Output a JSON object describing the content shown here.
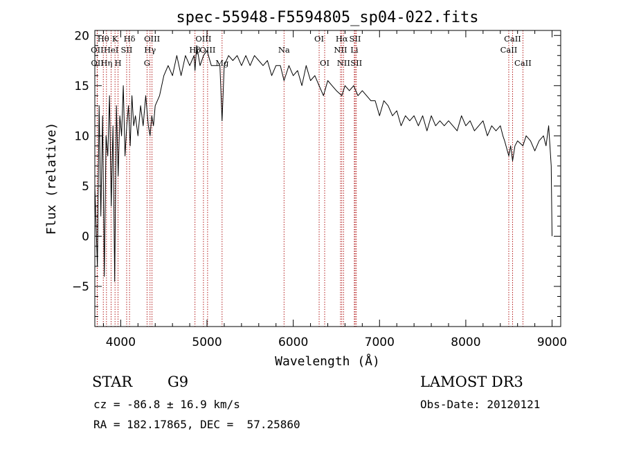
{
  "chart_data": {
    "type": "line",
    "title": "spec-55948-F5594805_sp04-022.fits",
    "xlabel": "Wavelength (Å)",
    "ylabel": "Flux (relative)",
    "xlim": [
      3700,
      9100
    ],
    "ylim": [
      -9,
      20.5
    ],
    "xticks": [
      4000,
      5000,
      6000,
      7000,
      8000,
      9000
    ],
    "yticks": [
      -5,
      0,
      5,
      10,
      15,
      20
    ],
    "x_tick_labels": [
      "4000",
      "5000",
      "6000",
      "7000",
      "8000",
      "9000"
    ],
    "y_tick_labels": [
      "−5",
      "0",
      "5",
      "10",
      "15",
      "20"
    ],
    "series": [
      {
        "name": "flux",
        "x": [
          3700,
          3730,
          3750,
          3770,
          3790,
          3810,
          3830,
          3850,
          3870,
          3890,
          3910,
          3930,
          3950,
          3970,
          3990,
          4010,
          4030,
          4050,
          4070,
          4090,
          4110,
          4130,
          4150,
          4170,
          4200,
          4230,
          4260,
          4290,
          4320,
          4340,
          4360,
          4380,
          4400,
          4450,
          4500,
          4550,
          4600,
          4650,
          4700,
          4750,
          4800,
          4850,
          4861,
          4880,
          4920,
          4960,
          5000,
          5050,
          5100,
          5150,
          5175,
          5200,
          5250,
          5300,
          5350,
          5400,
          5450,
          5500,
          5550,
          5600,
          5650,
          5700,
          5750,
          5800,
          5850,
          5893,
          5950,
          6000,
          6050,
          6100,
          6150,
          6200,
          6250,
          6300,
          6350,
          6400,
          6450,
          6500,
          6563,
          6600,
          6650,
          6700,
          6750,
          6800,
          6850,
          6900,
          6950,
          7000,
          7050,
          7100,
          7150,
          7200,
          7250,
          7300,
          7350,
          7400,
          7450,
          7500,
          7550,
          7600,
          7650,
          7700,
          7750,
          7800,
          7850,
          7900,
          7950,
          8000,
          8050,
          8100,
          8150,
          8200,
          8250,
          8300,
          8350,
          8400,
          8430,
          8450,
          8498,
          8520,
          8542,
          8570,
          8600,
          8662,
          8700,
          8750,
          8800,
          8850,
          8900,
          8930,
          8960,
          8990,
          9000
        ],
        "values": [
          5,
          -3,
          13,
          2,
          12,
          -4,
          10,
          8,
          14,
          3,
          11,
          -4.5,
          13,
          6,
          12,
          10,
          15,
          8,
          11,
          13,
          9,
          14,
          11,
          12,
          10,
          13,
          11,
          14,
          11,
          10,
          12,
          11,
          13,
          14,
          16,
          17,
          16,
          18,
          16,
          18,
          17,
          18,
          16.5,
          19,
          17,
          18,
          18.5,
          17,
          17,
          17,
          11.5,
          17,
          18,
          17.5,
          18,
          17,
          18,
          17,
          18,
          17.5,
          17,
          17.5,
          16,
          17,
          17,
          15.5,
          17,
          16,
          16.5,
          15,
          17,
          15.5,
          16,
          15,
          14,
          15.5,
          15,
          14.5,
          14,
          15,
          14.5,
          15,
          14,
          14.5,
          14,
          13.5,
          13.5,
          12,
          13.5,
          13,
          12,
          12.5,
          11,
          12,
          11.5,
          12,
          11,
          12,
          10.5,
          12,
          11,
          11.5,
          11,
          11.5,
          11,
          10.5,
          12,
          11,
          11.5,
          10.5,
          11,
          11.5,
          10,
          11,
          10.5,
          11,
          10,
          9.5,
          8,
          9,
          7.5,
          9,
          9.5,
          9,
          10,
          9.5,
          8.5,
          9.5,
          10,
          9,
          11,
          7,
          0
        ]
      }
    ],
    "spectral_lines": [
      {
        "label": "Hθ",
        "x": 3798,
        "row": 0
      },
      {
        "label": "OII",
        "x": 3727,
        "row": 1
      },
      {
        "label": "OII",
        "x": 3729,
        "row": 2
      },
      {
        "label": "Hη",
        "x": 3835,
        "row": 2
      },
      {
        "label": "HeI",
        "x": 3889,
        "row": 1
      },
      {
        "label": "K",
        "x": 3934,
        "row": 0
      },
      {
        "label": "H",
        "x": 3969,
        "row": 2
      },
      {
        "label": "SII",
        "x": 4069,
        "row": 1
      },
      {
        "label": "Hδ",
        "x": 4102,
        "row": 0
      },
      {
        "label": "OIII",
        "x": 4363,
        "row": 0
      },
      {
        "label": "Hγ",
        "x": 4340,
        "row": 1
      },
      {
        "label": "G",
        "x": 4305,
        "row": 2
      },
      {
        "label": "OIII",
        "x": 4959,
        "row": 0
      },
      {
        "label": "OIII",
        "x": 5007,
        "row": 1
      },
      {
        "label": "Hβ",
        "x": 4861,
        "row": 1
      },
      {
        "label": "Mg",
        "x": 5175,
        "row": 2
      },
      {
        "label": "Na",
        "x": 5893,
        "row": 1
      },
      {
        "label": "OI",
        "x": 6300,
        "row": 0
      },
      {
        "label": "OI",
        "x": 6364,
        "row": 2
      },
      {
        "label": "Hα",
        "x": 6563,
        "row": 0
      },
      {
        "label": "NII",
        "x": 6548,
        "row": 1
      },
      {
        "label": "NII",
        "x": 6583,
        "row": 2
      },
      {
        "label": "SII",
        "x": 6717,
        "row": 0
      },
      {
        "label": "Li",
        "x": 6708,
        "row": 1
      },
      {
        "label": "SII",
        "x": 6731,
        "row": 2
      },
      {
        "label": "CaII",
        "x": 8498,
        "row": 1
      },
      {
        "label": "CaII",
        "x": 8542,
        "row": 0
      },
      {
        "label": "CaII",
        "x": 8662,
        "row": 2
      }
    ],
    "line_color": "#000000",
    "marker_color": "#aa0000"
  },
  "info": {
    "object_class": "STAR",
    "subclass": "G9",
    "survey": "LAMOST DR3",
    "redshift": "cz = -86.8 ± 16.9 km/s",
    "obs_date": "Obs-Date: 20120121",
    "coords": "RA = 182.17865, DEC =  57.25860"
  }
}
